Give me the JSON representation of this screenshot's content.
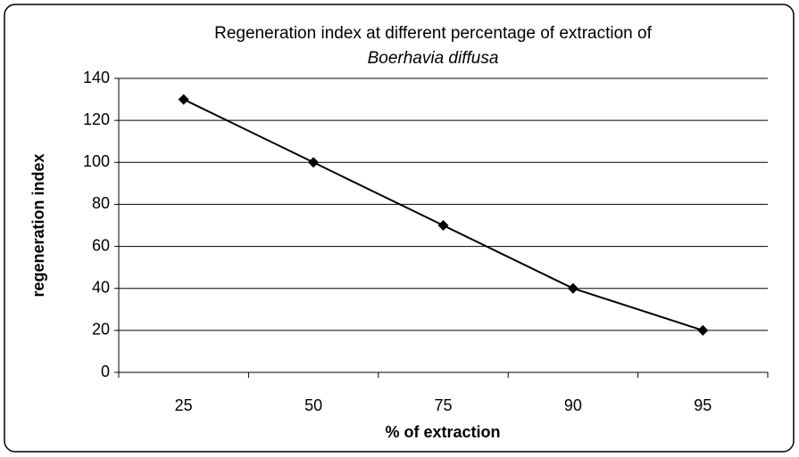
{
  "chart_data": {
    "type": "line",
    "title": "Regeneration index at different percentage of extraction of",
    "subtitle": "Boerhavia diffusa",
    "x_label": "% of extraction",
    "y_label": "regeneration index",
    "categories": [
      "25",
      "50",
      "75",
      "90",
      "95"
    ],
    "values": [
      130,
      100,
      70,
      40,
      20
    ],
    "color": "#000000",
    "ylim": [
      0,
      140
    ],
    "yticks": [
      0,
      20,
      40,
      60,
      80,
      100,
      120,
      140
    ],
    "grid": true
  }
}
